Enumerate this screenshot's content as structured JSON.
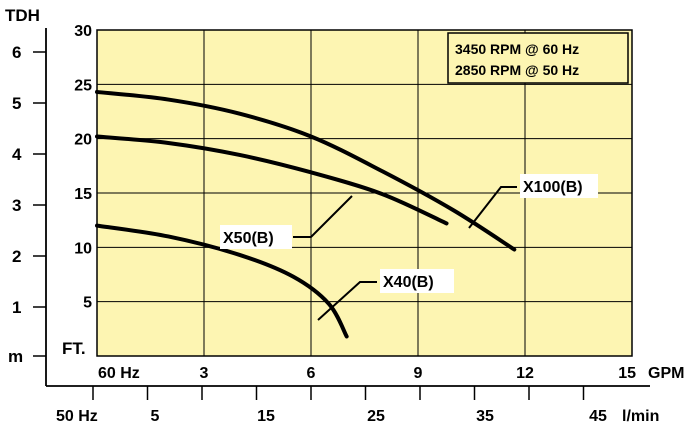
{
  "chart_data": {
    "type": "line",
    "title": "",
    "rpm_box": [
      "3450 RPM @ 60 Hz",
      "2850 RPM @ 50 Hz"
    ],
    "y_left": {
      "label": "TDH",
      "unit": "m",
      "ticks": [
        "1",
        "2",
        "3",
        "4",
        "5",
        "6"
      ]
    },
    "y_right": {
      "unit": "FT.",
      "ticks": [
        "5",
        "10",
        "15",
        "20",
        "25",
        "30"
      ],
      "range": [
        0,
        30
      ]
    },
    "x_top": {
      "prefix": "60 Hz",
      "unit": "GPM",
      "ticks": [
        "3",
        "6",
        "9",
        "12",
        "15"
      ],
      "range": [
        0,
        15
      ]
    },
    "x_bottom": {
      "prefix": "50 Hz",
      "unit": "l/min",
      "ticks": [
        "5",
        "15",
        "25",
        "35",
        "45"
      ]
    },
    "grid": true,
    "background": "#fdf5b2",
    "series": [
      {
        "name": "X100(B)",
        "points": [
          [
            0,
            24.3
          ],
          [
            2,
            23.6
          ],
          [
            4,
            22.3
          ],
          [
            6,
            20.2
          ],
          [
            8,
            17.0
          ],
          [
            10,
            13.4
          ],
          [
            11.7,
            9.8
          ]
        ]
      },
      {
        "name": "X50(B)",
        "points": [
          [
            0,
            20.2
          ],
          [
            2,
            19.6
          ],
          [
            4,
            18.5
          ],
          [
            6,
            16.9
          ],
          [
            8,
            14.9
          ],
          [
            9.8,
            12.2
          ]
        ]
      },
      {
        "name": "X40(B)",
        "points": [
          [
            0,
            12.0
          ],
          [
            2,
            11.0
          ],
          [
            4,
            9.3
          ],
          [
            5.5,
            7.3
          ],
          [
            6.5,
            4.8
          ],
          [
            7.0,
            1.8
          ]
        ]
      }
    ]
  }
}
